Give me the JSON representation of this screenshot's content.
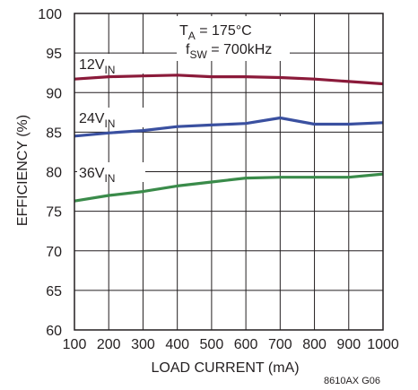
{
  "chart_data": {
    "type": "line",
    "title": "",
    "xlabel": "LOAD CURRENT (mA)",
    "ylabel": "EFFICIENCY (%)",
    "xlim": [
      100,
      1000
    ],
    "ylim": [
      60,
      100
    ],
    "xticks": [
      100,
      200,
      300,
      400,
      500,
      600,
      700,
      800,
      900,
      1000
    ],
    "yticks": [
      60,
      65,
      70,
      75,
      80,
      85,
      90,
      95,
      100
    ],
    "grid": true,
    "annotations": {
      "ta_text": "T",
      "ta_sub": "A",
      "ta_value": " = 175°C",
      "fsw_text": "f",
      "fsw_sub": "SW",
      "fsw_value": " = 700kHz"
    },
    "figure_id": "8610AX G06",
    "series": [
      {
        "label_main": "12V",
        "label_sub": "IN",
        "color": "#8b1a3a",
        "x": [
          100,
          200,
          300,
          400,
          500,
          600,
          700,
          800,
          900,
          1000
        ],
        "y": [
          91.7,
          92.0,
          92.1,
          92.2,
          92.0,
          92.0,
          91.9,
          91.7,
          91.4,
          91.1
        ]
      },
      {
        "label_main": "24V",
        "label_sub": "IN",
        "color": "#3a50a0",
        "x": [
          100,
          200,
          300,
          400,
          500,
          600,
          700,
          800,
          900,
          1000
        ],
        "y": [
          84.5,
          84.9,
          85.2,
          85.7,
          85.9,
          86.1,
          86.8,
          86.0,
          86.0,
          86.2
        ]
      },
      {
        "label_main": "36V",
        "label_sub": "IN",
        "color": "#3a8b4a",
        "x": [
          100,
          200,
          300,
          400,
          500,
          600,
          700,
          800,
          900,
          1000
        ],
        "y": [
          76.3,
          77.0,
          77.5,
          78.2,
          78.7,
          79.2,
          79.3,
          79.3,
          79.3,
          79.7
        ]
      }
    ]
  }
}
